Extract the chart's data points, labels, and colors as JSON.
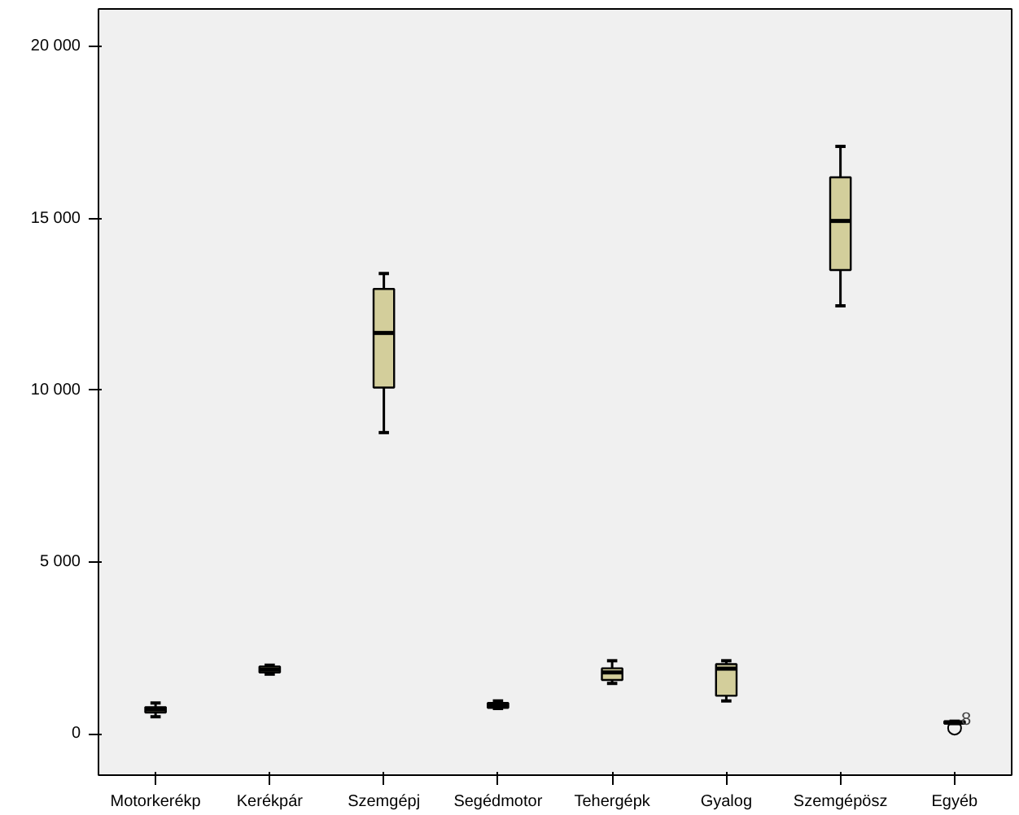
{
  "chart_data": {
    "type": "box",
    "categories": [
      "Motorkerékp",
      "Kerékpár",
      "Szemgépj",
      "Segédmotor",
      "Tehergépk",
      "Gyalog",
      "Szemgépösz",
      "Egyéb"
    ],
    "boxes": [
      {
        "low": 500,
        "q1": 620,
        "median": 710,
        "q3": 780,
        "high": 900
      },
      {
        "low": 1740,
        "q1": 1790,
        "median": 1870,
        "q3": 1960,
        "high": 2000
      },
      {
        "low": 8770,
        "q1": 10080,
        "median": 11670,
        "q3": 12950,
        "high": 13400
      },
      {
        "low": 740,
        "q1": 760,
        "median": 830,
        "q3": 900,
        "high": 960
      },
      {
        "low": 1470,
        "q1": 1570,
        "median": 1790,
        "q3": 1910,
        "high": 2130
      },
      {
        "low": 960,
        "q1": 1110,
        "median": 1900,
        "q3": 2030,
        "high": 2130
      },
      {
        "low": 12460,
        "q1": 13500,
        "median": 14930,
        "q3": 16200,
        "high": 17100
      },
      {
        "low": 300,
        "q1": 300,
        "median": 330,
        "q3": 370,
        "high": 370,
        "outliers": [
          170
        ]
      }
    ],
    "color": "#d3ce9b",
    "ylim": [
      -1200,
      21100
    ],
    "yticks": [
      {
        "value": 0,
        "label": "0"
      },
      {
        "value": 5000,
        "label": "5 000"
      },
      {
        "value": 10000,
        "label": "10 000"
      },
      {
        "value": 15000,
        "label": "15 000"
      },
      {
        "value": 20000,
        "label": "20 000"
      }
    ],
    "annotations": [
      {
        "text": "8",
        "x": "Egyéb",
        "y": 170
      }
    ],
    "grid": false
  }
}
